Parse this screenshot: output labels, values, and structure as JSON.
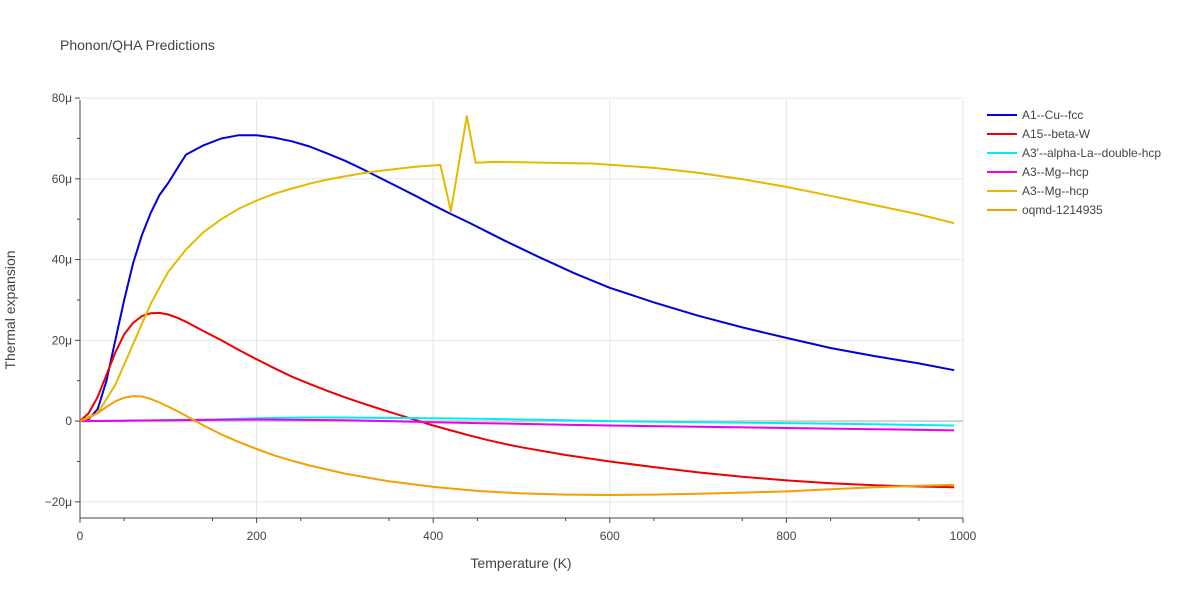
{
  "chart_data": {
    "type": "line",
    "title": "Phonon/QHA Predictions",
    "xlabel": "Temperature (K)",
    "ylabel": "Thermal expansion",
    "xlim": [
      0,
      1000
    ],
    "ylim": [
      -24,
      82
    ],
    "x_ticks": [
      0,
      200,
      400,
      600,
      800,
      1000
    ],
    "x_tick_labels": [
      "0",
      "200",
      "400",
      "600",
      "800",
      "1000"
    ],
    "y_ticks": [
      -20,
      0,
      20,
      40,
      60,
      80
    ],
    "y_tick_labels": [
      "−20μ",
      "0",
      "20μ",
      "40μ",
      "60μ",
      "80μ"
    ],
    "grid": true,
    "legend_position": "right",
    "series": [
      {
        "name": "A1--Cu--fcc",
        "color": "#0000dd",
        "points": [
          [
            0,
            0
          ],
          [
            10,
            0.5
          ],
          [
            20,
            3
          ],
          [
            30,
            10
          ],
          [
            40,
            20
          ],
          [
            50,
            30
          ],
          [
            60,
            39
          ],
          [
            70,
            46
          ],
          [
            80,
            51.5
          ],
          [
            90,
            56
          ],
          [
            100,
            59
          ],
          [
            110,
            62.5
          ],
          [
            120,
            66
          ],
          [
            140,
            68.3
          ],
          [
            160,
            70
          ],
          [
            180,
            70.8
          ],
          [
            200,
            70.8
          ],
          [
            220,
            70.2
          ],
          [
            240,
            69.3
          ],
          [
            260,
            68
          ],
          [
            280,
            66.3
          ],
          [
            300,
            64.5
          ],
          [
            320,
            62.4
          ],
          [
            340,
            60.2
          ],
          [
            360,
            58
          ],
          [
            380,
            55.8
          ],
          [
            400,
            53.5
          ],
          [
            420,
            51.3
          ],
          [
            440,
            49.2
          ],
          [
            460,
            47
          ],
          [
            480,
            44.8
          ],
          [
            500,
            42.7
          ],
          [
            520,
            40.6
          ],
          [
            540,
            38.6
          ],
          [
            560,
            36.6
          ],
          [
            580,
            34.8
          ],
          [
            600,
            33
          ],
          [
            650,
            29.4
          ],
          [
            700,
            26.1
          ],
          [
            750,
            23.2
          ],
          [
            800,
            20.6
          ],
          [
            850,
            18.1
          ],
          [
            900,
            16.1
          ],
          [
            950,
            14.3
          ],
          [
            990,
            12.6
          ]
        ]
      },
      {
        "name": "A15--beta-W",
        "color": "#ee0000",
        "points": [
          [
            0,
            0
          ],
          [
            10,
            2
          ],
          [
            20,
            6
          ],
          [
            30,
            11.5
          ],
          [
            40,
            17
          ],
          [
            50,
            21.5
          ],
          [
            60,
            24.3
          ],
          [
            70,
            26
          ],
          [
            80,
            26.7
          ],
          [
            90,
            26.8
          ],
          [
            100,
            26.4
          ],
          [
            110,
            25.6
          ],
          [
            120,
            24.6
          ],
          [
            140,
            22.3
          ],
          [
            160,
            20
          ],
          [
            180,
            17.6
          ],
          [
            200,
            15.3
          ],
          [
            220,
            13.1
          ],
          [
            240,
            11
          ],
          [
            260,
            9.2
          ],
          [
            280,
            7.5
          ],
          [
            300,
            5.9
          ],
          [
            320,
            4.4
          ],
          [
            340,
            3
          ],
          [
            360,
            1.6
          ],
          [
            380,
            0.3
          ],
          [
            400,
            -1.1
          ],
          [
            420,
            -2.3
          ],
          [
            440,
            -3.5
          ],
          [
            460,
            -4.6
          ],
          [
            480,
            -5.6
          ],
          [
            500,
            -6.5
          ],
          [
            550,
            -8.4
          ],
          [
            600,
            -10
          ],
          [
            650,
            -11.4
          ],
          [
            700,
            -12.7
          ],
          [
            750,
            -13.8
          ],
          [
            800,
            -14.7
          ],
          [
            850,
            -15.4
          ],
          [
            900,
            -15.9
          ],
          [
            950,
            -16.2
          ],
          [
            990,
            -16.4
          ]
        ]
      },
      {
        "name": "A3'--alpha-La--double-hcp",
        "color": "#00eeee",
        "points": [
          [
            0,
            0
          ],
          [
            50,
            0.1
          ],
          [
            100,
            0.2
          ],
          [
            150,
            0.4
          ],
          [
            200,
            0.7
          ],
          [
            250,
            0.9
          ],
          [
            300,
            0.9
          ],
          [
            350,
            0.8
          ],
          [
            400,
            0.7
          ],
          [
            450,
            0.6
          ],
          [
            500,
            0.4
          ],
          [
            550,
            0.2
          ],
          [
            600,
            0
          ],
          [
            700,
            -0.3
          ],
          [
            800,
            -0.5
          ],
          [
            900,
            -0.8
          ],
          [
            990,
            -1.1
          ]
        ]
      },
      {
        "name": "A3--Mg--hcp",
        "color": "#ee00ee",
        "points": [
          [
            0,
            0
          ],
          [
            50,
            0.1
          ],
          [
            100,
            0.2
          ],
          [
            150,
            0.3
          ],
          [
            200,
            0.4
          ],
          [
            250,
            0.3
          ],
          [
            300,
            0.2
          ],
          [
            350,
            0
          ],
          [
            400,
            -0.3
          ],
          [
            450,
            -0.5
          ],
          [
            500,
            -0.7
          ],
          [
            550,
            -0.9
          ],
          [
            600,
            -1.1
          ],
          [
            700,
            -1.4
          ],
          [
            800,
            -1.7
          ],
          [
            900,
            -2
          ],
          [
            990,
            -2.3
          ]
        ]
      },
      {
        "name": "A3--Mg--hcp",
        "color": "#e6b800",
        "points": [
          [
            0,
            0
          ],
          [
            20,
            2
          ],
          [
            40,
            9
          ],
          [
            60,
            19
          ],
          [
            80,
            29
          ],
          [
            100,
            37
          ],
          [
            120,
            42.5
          ],
          [
            140,
            46.8
          ],
          [
            160,
            50
          ],
          [
            180,
            52.6
          ],
          [
            200,
            54.6
          ],
          [
            220,
            56.3
          ],
          [
            240,
            57.6
          ],
          [
            260,
            58.8
          ],
          [
            280,
            59.8
          ],
          [
            300,
            60.6
          ],
          [
            320,
            61.4
          ],
          [
            340,
            62
          ],
          [
            360,
            62.5
          ],
          [
            380,
            63
          ],
          [
            400,
            63.3
          ],
          [
            408,
            63.5
          ],
          [
            420,
            52
          ],
          [
            438,
            75.5
          ],
          [
            448,
            64
          ],
          [
            470,
            64.2
          ],
          [
            500,
            64.1
          ],
          [
            550,
            63.9
          ],
          [
            580,
            63.8
          ],
          [
            600,
            63.5
          ],
          [
            650,
            62.7
          ],
          [
            700,
            61.5
          ],
          [
            750,
            59.9
          ],
          [
            800,
            58
          ],
          [
            850,
            55.8
          ],
          [
            900,
            53.5
          ],
          [
            950,
            51.2
          ],
          [
            990,
            49
          ]
        ]
      },
      {
        "name": "oqmd-1214935",
        "color": "#f5a000",
        "points": [
          [
            0,
            0
          ],
          [
            10,
            0.8
          ],
          [
            20,
            2
          ],
          [
            30,
            3.5
          ],
          [
            40,
            4.9
          ],
          [
            50,
            5.8
          ],
          [
            60,
            6.2
          ],
          [
            70,
            6.1
          ],
          [
            80,
            5.5
          ],
          [
            90,
            4.6
          ],
          [
            100,
            3.6
          ],
          [
            110,
            2.5
          ],
          [
            120,
            1.3
          ],
          [
            130,
            0.1
          ],
          [
            140,
            -1.1
          ],
          [
            160,
            -3.3
          ],
          [
            180,
            -5.2
          ],
          [
            200,
            -6.9
          ],
          [
            220,
            -8.5
          ],
          [
            240,
            -9.8
          ],
          [
            260,
            -11
          ],
          [
            280,
            -12
          ],
          [
            300,
            -13
          ],
          [
            350,
            -14.9
          ],
          [
            400,
            -16.3
          ],
          [
            450,
            -17.3
          ],
          [
            500,
            -17.9
          ],
          [
            550,
            -18.2
          ],
          [
            600,
            -18.3
          ],
          [
            650,
            -18.2
          ],
          [
            700,
            -18
          ],
          [
            750,
            -17.7
          ],
          [
            800,
            -17.4
          ],
          [
            850,
            -16.9
          ],
          [
            900,
            -16.4
          ],
          [
            950,
            -16
          ],
          [
            990,
            -15.8
          ]
        ]
      }
    ]
  }
}
